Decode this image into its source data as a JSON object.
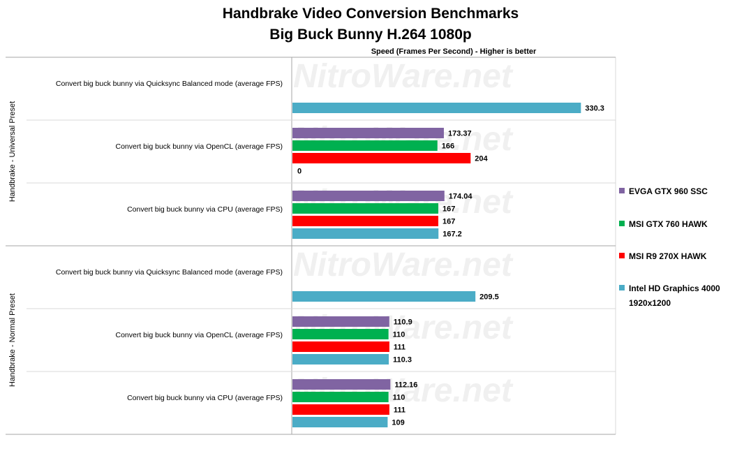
{
  "chart_data": {
    "type": "bar",
    "orientation": "horizontal",
    "title": "Handbrake Video Conversion Benchmarks",
    "subtitle": "Big Buck Bunny H.264 1080p",
    "xlabel": "Speed (Frames Per Second) - Higher is better",
    "xlim": [
      0,
      350
    ],
    "grid": false,
    "legend_position": "right",
    "watermark": "NitroWare.net",
    "series": [
      {
        "name": "EVGA GTX 960 SSC",
        "color": "#8064a2"
      },
      {
        "name": "MSI GTX 760 HAWK",
        "color": "#00b050"
      },
      {
        "name": "MSI R9 270X HAWK",
        "color": "#ff0000"
      },
      {
        "name": "Intel HD Graphics 4000 1920x1200",
        "color": "#4bacc6"
      }
    ],
    "groups": [
      {
        "label": "Handbrake - Universal Preset",
        "categories": [
          {
            "label": "Convert big buck bunny via Quicksync Balanced mode (average FPS)",
            "bars": [
              {
                "series": 3,
                "value": 330.3,
                "label": "330.3"
              }
            ]
          },
          {
            "label": "Convert big buck bunny via OpenCL (average FPS)",
            "bars": [
              {
                "series": 0,
                "value": 173.37,
                "label": "173.37"
              },
              {
                "series": 1,
                "value": 166,
                "label": "166"
              },
              {
                "series": 2,
                "value": 204,
                "label": "204"
              },
              {
                "series": 3,
                "value": 0,
                "label": "0"
              }
            ]
          },
          {
            "label": "Convert big buck bunny via CPU (average FPS)",
            "bars": [
              {
                "series": 0,
                "value": 174.04,
                "label": "174.04"
              },
              {
                "series": 1,
                "value": 167,
                "label": "167"
              },
              {
                "series": 2,
                "value": 167,
                "label": "167"
              },
              {
                "series": 3,
                "value": 167.2,
                "label": "167.2"
              }
            ]
          }
        ]
      },
      {
        "label": "Handbrake - Normal Preset",
        "categories": [
          {
            "label": "Convert big buck bunny via Quicksync Balanced mode (average FPS)",
            "bars": [
              {
                "series": 3,
                "value": 209.5,
                "label": "209.5"
              }
            ]
          },
          {
            "label": "Convert big buck bunny via OpenCL (average FPS)",
            "bars": [
              {
                "series": 0,
                "value": 110.9,
                "label": "110.9"
              },
              {
                "series": 1,
                "value": 110,
                "label": "110"
              },
              {
                "series": 2,
                "value": 111,
                "label": "111"
              },
              {
                "series": 3,
                "value": 110.3,
                "label": "110.3"
              }
            ]
          },
          {
            "label": "Convert big buck bunny via CPU (average FPS)",
            "bars": [
              {
                "series": 0,
                "value": 112.16,
                "label": "112.16"
              },
              {
                "series": 1,
                "value": 110,
                "label": "110"
              },
              {
                "series": 2,
                "value": 111,
                "label": "111"
              },
              {
                "series": 3,
                "value": 109,
                "label": "109"
              }
            ]
          }
        ]
      }
    ]
  }
}
